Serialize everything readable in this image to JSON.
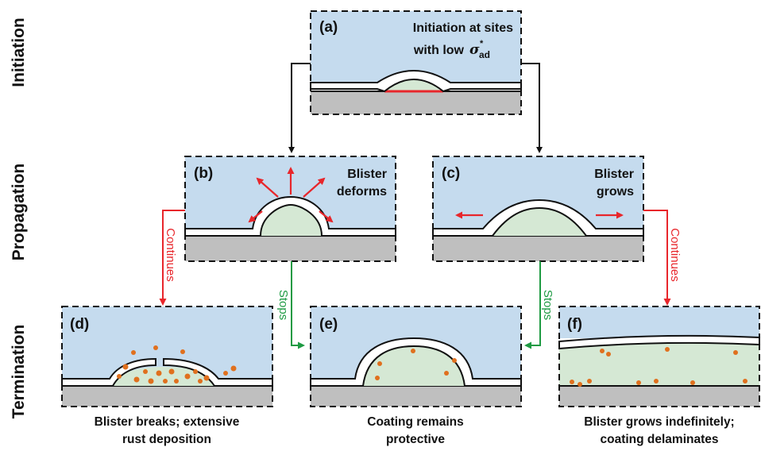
{
  "stages": [
    "Initiation",
    "Propagation",
    "Termination"
  ],
  "panels": {
    "a": {
      "label": "(a)",
      "lines": [
        "Initiation at sites",
        "with low"
      ],
      "symbol": "σ",
      "sub": "ad",
      "sup": "*"
    },
    "b": {
      "label": "(b)",
      "lines": [
        "Blister",
        "deforms"
      ]
    },
    "c": {
      "label": "(c)",
      "lines": [
        "Blister",
        "grows"
      ]
    },
    "d": {
      "label": "(d)",
      "caption": [
        "Blister breaks; extensive",
        "rust deposition"
      ]
    },
    "e": {
      "label": "(e)",
      "caption": [
        "Coating remains",
        "protective"
      ]
    },
    "f": {
      "label": "(f)",
      "caption": [
        "Blister grows indefinitely;",
        "coating delaminates"
      ]
    }
  },
  "arrows": {
    "continues": "Continues",
    "stops": "Stops"
  },
  "colors": {
    "panel_bg": "#c5dbee",
    "blister_fill": "#d5e8d4",
    "substrate": "#bfbfbf",
    "red": "#e8262b",
    "green": "#1e9a43",
    "rust": "#e0701e"
  }
}
